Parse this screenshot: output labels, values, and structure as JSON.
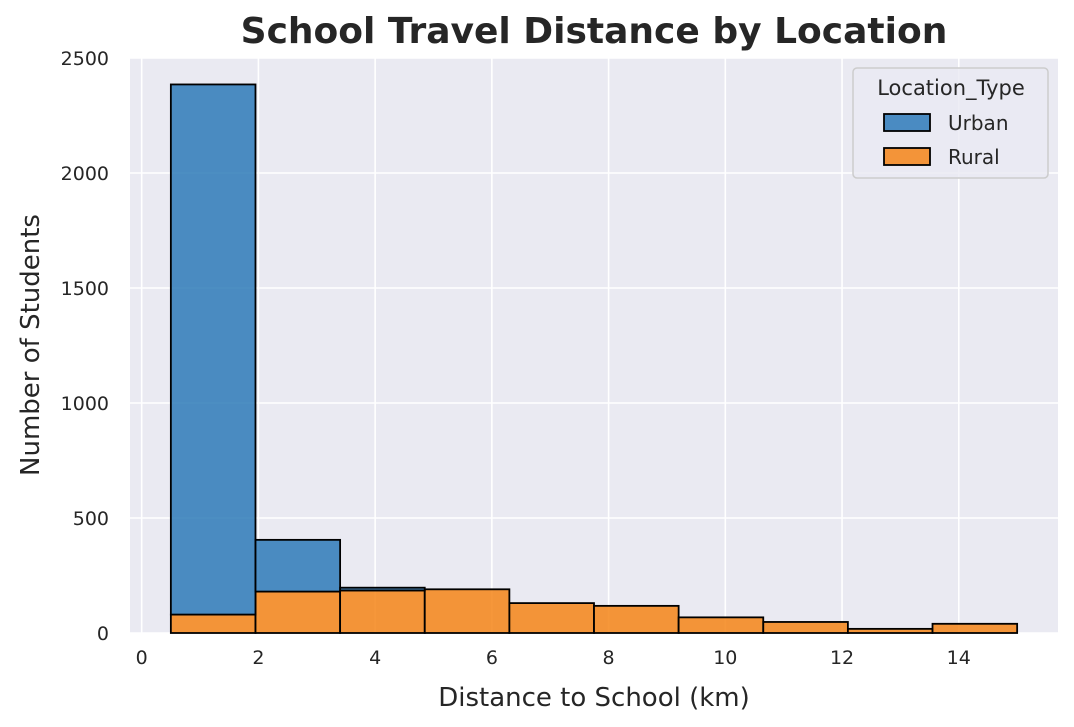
{
  "chart_data": {
    "type": "histogram",
    "stacked": true,
    "title": "School Travel Distance by Location",
    "xlabel": "Distance to School (km)",
    "ylabel": "Number of Students",
    "xlim": [
      -0.2,
      15.7
    ],
    "ylim": [
      0,
      2500
    ],
    "xticks": [
      0,
      2,
      4,
      6,
      8,
      10,
      12,
      14
    ],
    "yticks": [
      0,
      500,
      1000,
      1500,
      2000,
      2500
    ],
    "grid": true,
    "legend": {
      "title": "Location_Type",
      "position": "top-right"
    },
    "bin_edges": [
      0.5,
      1.95,
      3.4,
      4.85,
      6.3,
      7.75,
      9.2,
      10.65,
      12.1,
      13.55,
      15.0
    ],
    "series": [
      {
        "name": "Rural",
        "color": "#f58518",
        "values": [
          80,
          180,
          185,
          190,
          130,
          118,
          68,
          48,
          18,
          40
        ]
      },
      {
        "name": "Urban",
        "color": "#2e7ab8",
        "values": [
          2305,
          225,
          12,
          0,
          0,
          0,
          0,
          0,
          0,
          0
        ]
      }
    ],
    "legend_order": [
      "Urban",
      "Rural"
    ]
  },
  "style": {
    "plot_background": "#eaeaf2",
    "grid_color": "#ffffff",
    "bar_edge_color": "#000000"
  }
}
